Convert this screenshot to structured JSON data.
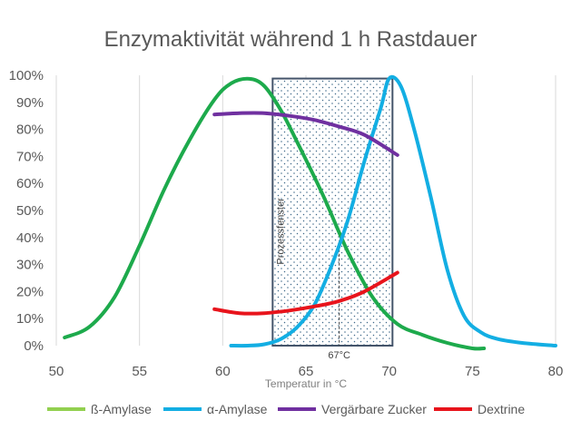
{
  "chart_data": {
    "type": "line",
    "title": "Enzymaktivität während 1 h Rastdauer",
    "xlabel": "Temperatur in °C",
    "ylabel": "",
    "xlim": [
      50,
      80
    ],
    "ylim": [
      0,
      100
    ],
    "x_ticks": [
      "50",
      "55",
      "60",
      "65",
      "70",
      "75",
      "80"
    ],
    "y_ticks": [
      "0%",
      "10%",
      "20%",
      "30%",
      "40%",
      "50%",
      "60%",
      "70%",
      "80%",
      "90%",
      "100%"
    ],
    "grid": "vertical",
    "legend_position": "bottom",
    "series": [
      {
        "name": "ß-Amylase",
        "color": "#1daa4c",
        "points": [
          [
            50.5,
            3
          ],
          [
            52,
            7
          ],
          [
            53.5,
            18
          ],
          [
            55,
            37
          ],
          [
            56.5,
            58
          ],
          [
            58,
            76
          ],
          [
            59.5,
            91
          ],
          [
            60.5,
            97
          ],
          [
            61.6,
            98.7
          ],
          [
            62.5,
            96
          ],
          [
            63.5,
            87
          ],
          [
            64.5,
            75
          ],
          [
            66,
            56
          ],
          [
            67.5,
            35
          ],
          [
            69,
            18
          ],
          [
            70.5,
            8
          ],
          [
            72,
            4
          ],
          [
            73.5,
            1
          ],
          [
            75,
            -1
          ],
          [
            75.7,
            -1
          ]
        ]
      },
      {
        "name": "α-Amylase",
        "color": "#13aee3",
        "points": [
          [
            60.5,
            0
          ],
          [
            61.5,
            0
          ],
          [
            62.5,
            0.5
          ],
          [
            63.5,
            2.5
          ],
          [
            64.5,
            7
          ],
          [
            65.5,
            15
          ],
          [
            66.5,
            29
          ],
          [
            67.5,
            46
          ],
          [
            68.5,
            68
          ],
          [
            69.5,
            88
          ],
          [
            70,
            98.8
          ],
          [
            70.7,
            96
          ],
          [
            71.5,
            80
          ],
          [
            72.5,
            55
          ],
          [
            73.5,
            28
          ],
          [
            74.5,
            11
          ],
          [
            75.5,
            5
          ],
          [
            76.5,
            2.5
          ],
          [
            78,
            1
          ],
          [
            80,
            0
          ]
        ]
      },
      {
        "name": "Vergärbare Zucker",
        "color": "#7030a0",
        "points": [
          [
            59.5,
            85.5
          ],
          [
            61,
            86
          ],
          [
            62.5,
            86
          ],
          [
            64,
            85
          ],
          [
            65.5,
            83.5
          ],
          [
            67,
            81
          ],
          [
            68.5,
            78
          ],
          [
            70.5,
            70.5
          ]
        ]
      },
      {
        "name": "Dextrine",
        "color": "#e8141c",
        "points": [
          [
            59.5,
            13.5
          ],
          [
            61,
            12
          ],
          [
            62.5,
            12
          ],
          [
            64,
            13
          ],
          [
            65.5,
            14.5
          ],
          [
            67,
            16.5
          ],
          [
            68.5,
            20
          ],
          [
            70.5,
            27
          ]
        ]
      }
    ],
    "annotations": {
      "window_label": "Prozessfenster",
      "window_range": [
        63,
        70.2
      ],
      "marker_x": 67,
      "marker_label": "67°C",
      "marker_y": 39
    }
  }
}
